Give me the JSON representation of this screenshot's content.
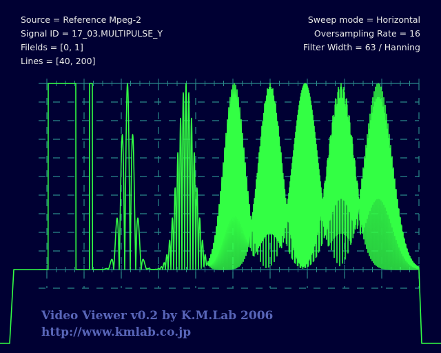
{
  "info": {
    "source": "Source = Reference Mpeg-2",
    "signal_id": "Signal ID = 17_03.MULTIPULSE_Y",
    "fields": "Filelds = [0, 1]",
    "lines": "Lines = [40, 200]",
    "sweep_mode": "Sweep mode = Horizontal",
    "oversampling": "Oversampling Rate = 16",
    "filter": "Filter Width = 63 / Hanning"
  },
  "brand": {
    "title": "Video Viewer v0.2 by K.M.Lab 2006",
    "url": "http://www.kmlab.co.jp"
  },
  "colors": {
    "background": "#000033",
    "graticule": "#2a8a8a",
    "waveform": "#33ff44",
    "brand_text": "#5865b8",
    "info_text": "#e8e8e8"
  },
  "waveform": {
    "pulses": [
      {
        "freq_cycles": 0.5,
        "amplitude": 1.0
      },
      {
        "freq_cycles": 1,
        "amplitude": 1.0
      },
      {
        "freq_cycles": 2,
        "amplitude": 1.0
      },
      {
        "freq_cycles": 4,
        "amplitude": 1.0
      },
      {
        "freq_cycles": 6,
        "amplitude": 1.0
      },
      {
        "freq_cycles": 8,
        "amplitude": 1.0
      },
      {
        "freq_cycles": 10,
        "amplitude": 1.0
      },
      {
        "freq_cycles": 12,
        "amplitude": 1.0
      }
    ]
  }
}
